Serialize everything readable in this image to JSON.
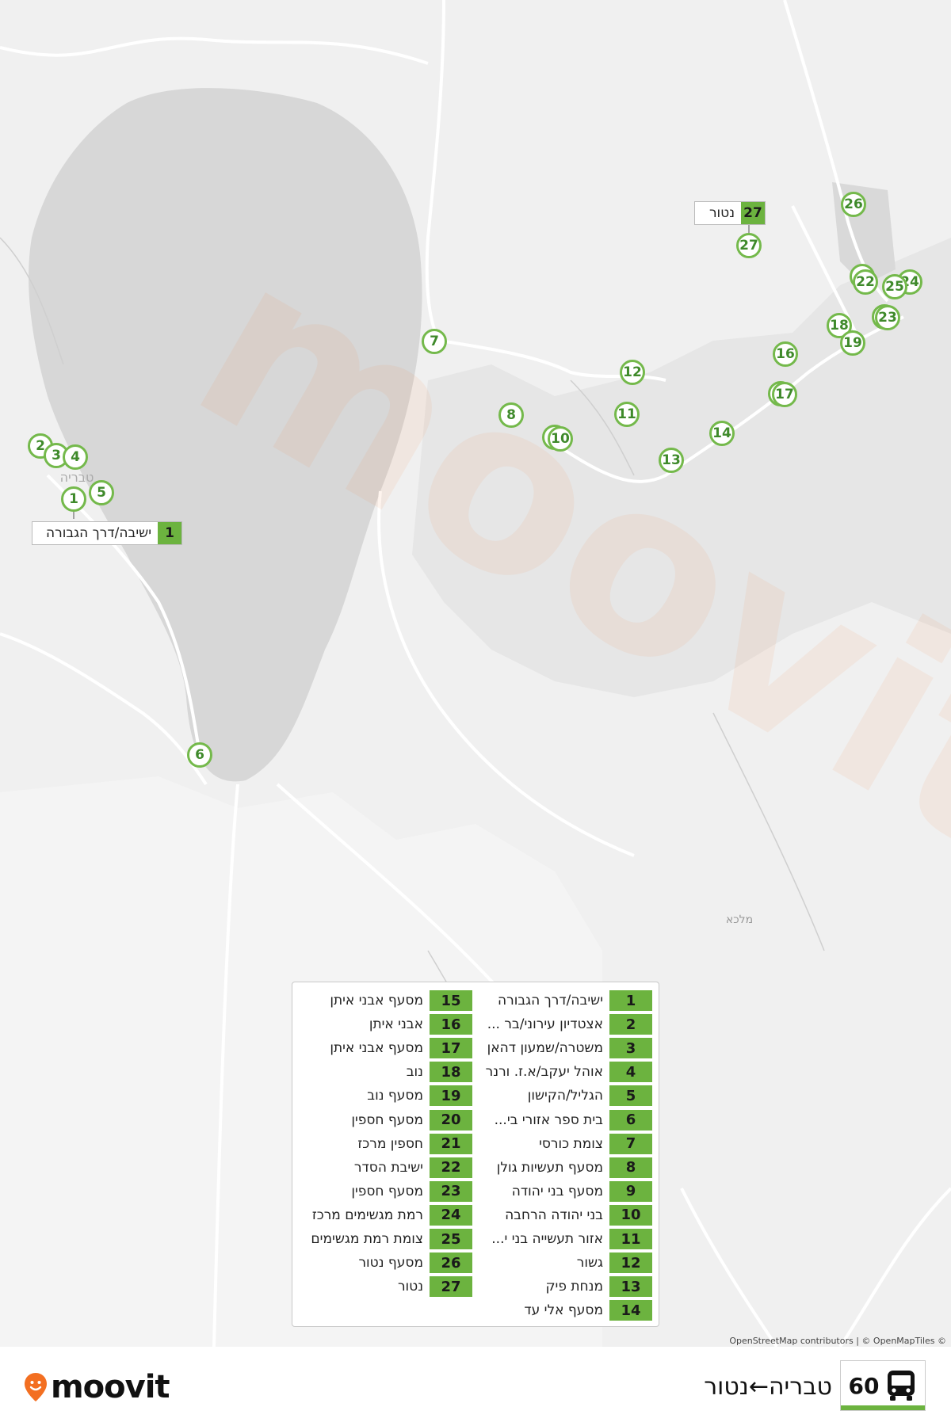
{
  "map": {
    "town_label": "טבריה",
    "east_label": "מלכא",
    "start_callout": {
      "number": "1",
      "name": "ישיבה/דרך הגבורה"
    },
    "end_callout": {
      "number": "27",
      "name": "נטור"
    },
    "watermark": "moovit"
  },
  "legend": {
    "stops": [
      {
        "number": "1",
        "name": "ישיבה/דרך הגבורה"
      },
      {
        "number": "2",
        "name": "אצטדיון עירוני/בר ..."
      },
      {
        "number": "3",
        "name": "משטרה/שמעון דהאן"
      },
      {
        "number": "4",
        "name": "אוהל יעקב/א.ז. ורנר"
      },
      {
        "number": "5",
        "name": "הגליל/הקישון"
      },
      {
        "number": "6",
        "name": "בית ספר אזורי בי..."
      },
      {
        "number": "7",
        "name": "צומת כורסי"
      },
      {
        "number": "8",
        "name": "מסעף תעשיות גולן"
      },
      {
        "number": "9",
        "name": "מסעף בני יהודה"
      },
      {
        "number": "10",
        "name": "בני יהודה הרחבה"
      },
      {
        "number": "11",
        "name": "אזור תעשייה בני י..."
      },
      {
        "number": "12",
        "name": "גשור"
      },
      {
        "number": "13",
        "name": "מנחת פיק"
      },
      {
        "number": "14",
        "name": "מסעף אלי עד"
      },
      {
        "number": "15",
        "name": "מסעף אבני איתן"
      },
      {
        "number": "16",
        "name": "אבני איתן"
      },
      {
        "number": "17",
        "name": "מסעף אבני איתן"
      },
      {
        "number": "18",
        "name": "נוב"
      },
      {
        "number": "19",
        "name": "מסעף נוב"
      },
      {
        "number": "20",
        "name": "מסעף חספין"
      },
      {
        "number": "21",
        "name": "חספין מרכז"
      },
      {
        "number": "22",
        "name": "ישיבת הסדר"
      },
      {
        "number": "23",
        "name": "מסעף חספין"
      },
      {
        "number": "24",
        "name": "רמת מגשימים מרכז"
      },
      {
        "number": "25",
        "name": "צומת רמת מגשימים"
      },
      {
        "number": "26",
        "name": "מסעף נטור"
      },
      {
        "number": "27",
        "name": "נטור"
      }
    ]
  },
  "attribution": "OpenStreetMap contributors | © OpenMapTiles ©",
  "footer": {
    "logo_text": "moovit",
    "route_number": "60",
    "route_title": "טבריה←נטור",
    "route_icon": "bus-icon",
    "accent_color": "#6cb33f",
    "brand_color": "#f36f21"
  }
}
